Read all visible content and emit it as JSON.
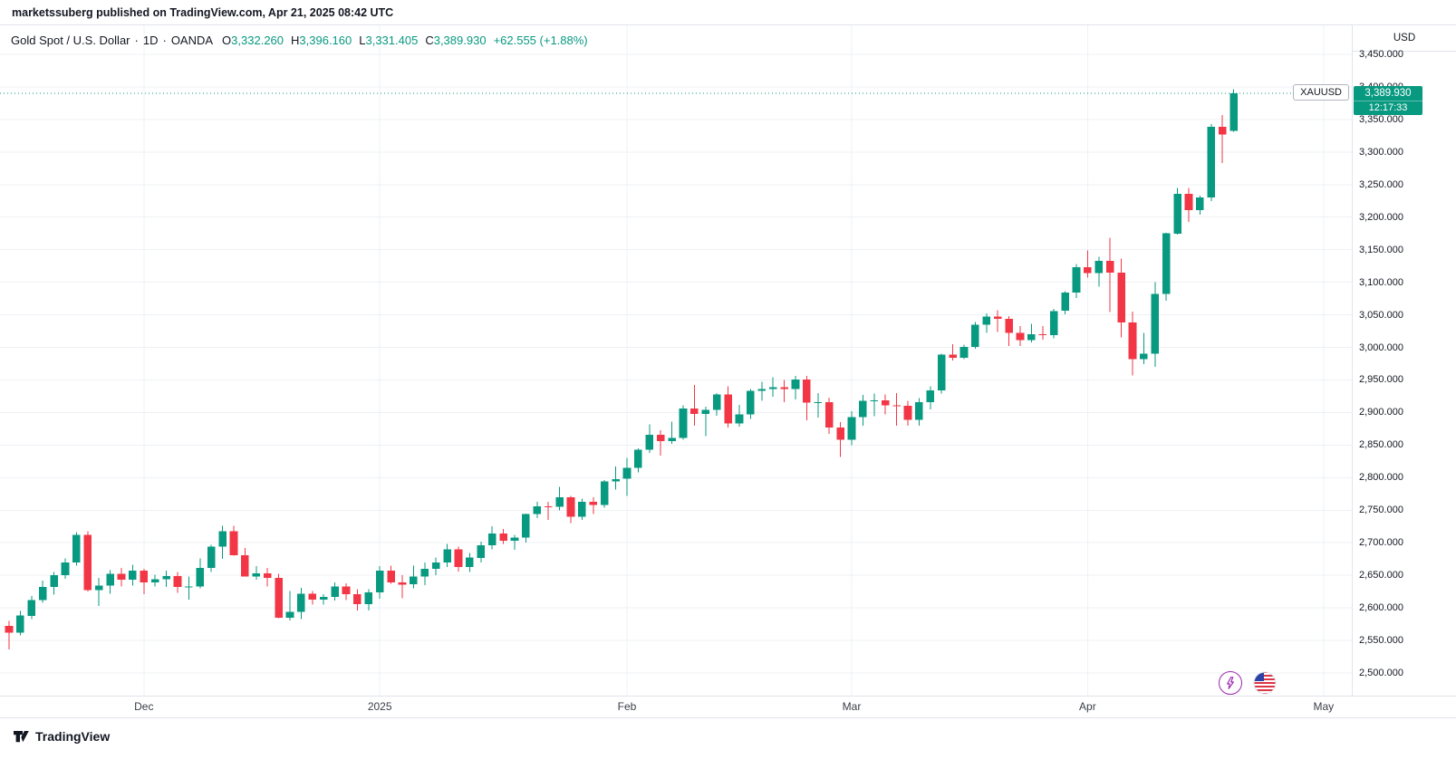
{
  "attribution": {
    "text": "marketssuberg published on TradingView.com, Apr 21, 2025 08:42 UTC"
  },
  "legend": {
    "symbol_title": "Gold Spot / U.S. Dollar",
    "separator": "·",
    "interval": "1D",
    "exchange": "OANDA",
    "ohlc": {
      "o_label": "O",
      "o": "3,332.260",
      "h_label": "H",
      "h": "3,396.160",
      "l_label": "L",
      "l": "3,331.405",
      "c_label": "C",
      "c": "3,389.930",
      "change": "+62.555 (+1.88%)"
    }
  },
  "price_axis": {
    "currency": "USD",
    "labels": [
      "3,450.000",
      "3,400.000",
      "3,350.000",
      "3,300.000",
      "3,250.000",
      "3,200.000",
      "3,150.000",
      "3,100.000",
      "3,050.000",
      "3,000.000",
      "2,950.000",
      "2,900.000",
      "2,850.000",
      "2,800.000",
      "2,750.000",
      "2,700.000",
      "2,650.000",
      "2,600.000",
      "2,550.000",
      "2,500.000"
    ],
    "values": [
      3450,
      3400,
      3350,
      3300,
      3250,
      3200,
      3150,
      3100,
      3050,
      3000,
      2950,
      2900,
      2850,
      2800,
      2750,
      2700,
      2650,
      2600,
      2550,
      2500
    ],
    "last_price_label": "3,389.930",
    "countdown": "12:17:33",
    "symbol_badge": "XAUUSD"
  },
  "time_axis": {
    "ticks": [
      {
        "label": "Dec",
        "index": 12
      },
      {
        "label": "2025",
        "index": 33
      },
      {
        "label": "Feb",
        "index": 55
      },
      {
        "label": "Mar",
        "index": 75
      },
      {
        "label": "Apr",
        "index": 96
      },
      {
        "label": "May",
        "index": 117
      }
    ]
  },
  "footer": {
    "brand": "TradingView"
  },
  "icons": {
    "flash": "lightning-event-marker",
    "flag": "us-economic-event-marker"
  },
  "colors": {
    "up": "#089981",
    "down": "#F23645",
    "grid": "#EEF1F5",
    "border": "#E0E3EB",
    "text": "#131722",
    "purple": "#9C27B0",
    "flag_red": "#DC3545",
    "flag_blue": "#2E42A5"
  },
  "chart_data": {
    "type": "candlestick",
    "title": "Gold Spot / U.S. Dollar",
    "symbol": "XAUUSD",
    "interval": "1D",
    "exchange": "OANDA",
    "ylabel": "USD",
    "price_range": [
      2500,
      3450
    ],
    "grid": true,
    "last_price": 3389.93,
    "columns": [
      "date",
      "open",
      "high",
      "low",
      "close"
    ],
    "candles": [
      [
        "2024-11-14",
        2572,
        2580,
        2536,
        2562
      ],
      [
        "2024-11-15",
        2562,
        2595,
        2558,
        2588
      ],
      [
        "2024-11-18",
        2588,
        2618,
        2583,
        2612
      ],
      [
        "2024-11-19",
        2612,
        2642,
        2608,
        2632
      ],
      [
        "2024-11-20",
        2632,
        2655,
        2620,
        2650
      ],
      [
        "2024-11-21",
        2650,
        2676,
        2645,
        2670
      ],
      [
        "2024-11-22",
        2670,
        2716,
        2665,
        2712
      ],
      [
        "2024-11-25",
        2712,
        2718,
        2625,
        2627
      ],
      [
        "2024-11-26",
        2627,
        2646,
        2603,
        2634
      ],
      [
        "2024-11-27",
        2634,
        2658,
        2622,
        2652
      ],
      [
        "2024-11-28",
        2652,
        2661,
        2633,
        2643
      ],
      [
        "2024-11-29",
        2643,
        2666,
        2634,
        2657
      ],
      [
        "2024-12-02",
        2657,
        2660,
        2621,
        2639
      ],
      [
        "2024-12-03",
        2639,
        2651,
        2633,
        2644
      ],
      [
        "2024-12-04",
        2644,
        2657,
        2632,
        2649
      ],
      [
        "2024-12-05",
        2649,
        2655,
        2623,
        2632
      ],
      [
        "2024-12-06",
        2632,
        2648,
        2613,
        2633
      ],
      [
        "2024-12-09",
        2633,
        2676,
        2630,
        2661
      ],
      [
        "2024-12-10",
        2661,
        2697,
        2655,
        2694
      ],
      [
        "2024-12-11",
        2694,
        2726,
        2675,
        2718
      ],
      [
        "2024-12-12",
        2718,
        2726,
        2680,
        2681
      ],
      [
        "2024-12-13",
        2681,
        2692,
        2648,
        2648
      ],
      [
        "2024-12-16",
        2648,
        2664,
        2643,
        2653
      ],
      [
        "2024-12-17",
        2653,
        2661,
        2633,
        2646
      ],
      [
        "2024-12-18",
        2646,
        2652,
        2584,
        2585
      ],
      [
        "2024-12-19",
        2585,
        2626,
        2581,
        2594
      ],
      [
        "2024-12-20",
        2594,
        2631,
        2583,
        2622
      ],
      [
        "2024-12-23",
        2622,
        2626,
        2605,
        2613
      ],
      [
        "2024-12-24",
        2613,
        2621,
        2605,
        2617
      ],
      [
        "2024-12-26",
        2617,
        2639,
        2611,
        2633
      ],
      [
        "2024-12-27",
        2633,
        2638,
        2612,
        2621
      ],
      [
        "2024-12-30",
        2621,
        2629,
        2596,
        2606
      ],
      [
        "2024-12-31",
        2606,
        2629,
        2596,
        2624
      ],
      [
        "2025-01-02",
        2624,
        2664,
        2614,
        2657
      ],
      [
        "2025-01-03",
        2657,
        2665,
        2637,
        2639
      ],
      [
        "2025-01-06",
        2639,
        2650,
        2615,
        2636
      ],
      [
        "2025-01-07",
        2636,
        2665,
        2630,
        2648
      ],
      [
        "2025-01-08",
        2648,
        2670,
        2635,
        2660
      ],
      [
        "2025-01-09",
        2660,
        2677,
        2650,
        2670
      ],
      [
        "2025-01-10",
        2670,
        2698,
        2663,
        2690
      ],
      [
        "2025-01-13",
        2690,
        2694,
        2656,
        2663
      ],
      [
        "2025-01-14",
        2663,
        2684,
        2655,
        2677
      ],
      [
        "2025-01-15",
        2677,
        2702,
        2670,
        2696
      ],
      [
        "2025-01-16",
        2696,
        2725,
        2690,
        2714
      ],
      [
        "2025-01-17",
        2714,
        2721,
        2698,
        2703
      ],
      [
        "2025-01-20",
        2703,
        2712,
        2689,
        2708
      ],
      [
        "2025-01-21",
        2708,
        2745,
        2700,
        2744
      ],
      [
        "2025-01-22",
        2744,
        2763,
        2738,
        2756
      ],
      [
        "2025-01-23",
        2756,
        2763,
        2735,
        2755
      ],
      [
        "2025-01-24",
        2755,
        2786,
        2750,
        2770
      ],
      [
        "2025-01-27",
        2770,
        2772,
        2730,
        2740
      ],
      [
        "2025-01-28",
        2740,
        2768,
        2735,
        2763
      ],
      [
        "2025-01-29",
        2763,
        2770,
        2744,
        2758
      ],
      [
        "2025-01-30",
        2758,
        2796,
        2754,
        2794
      ],
      [
        "2025-01-31",
        2794,
        2817,
        2782,
        2798
      ],
      [
        "2025-02-03",
        2798,
        2830,
        2772,
        2815
      ],
      [
        "2025-02-04",
        2815,
        2845,
        2808,
        2843
      ],
      [
        "2025-02-05",
        2843,
        2882,
        2838,
        2866
      ],
      [
        "2025-02-06",
        2866,
        2873,
        2834,
        2856
      ],
      [
        "2025-02-07",
        2856,
        2886,
        2852,
        2861
      ],
      [
        "2025-02-10",
        2861,
        2911,
        2858,
        2906
      ],
      [
        "2025-02-11",
        2906,
        2942,
        2880,
        2898
      ],
      [
        "2025-02-12",
        2898,
        2909,
        2864,
        2904
      ],
      [
        "2025-02-13",
        2904,
        2930,
        2895,
        2928
      ],
      [
        "2025-02-14",
        2928,
        2940,
        2877,
        2883
      ],
      [
        "2025-02-17",
        2883,
        2912,
        2878,
        2897
      ],
      [
        "2025-02-18",
        2897,
        2936,
        2890,
        2933
      ],
      [
        "2025-02-19",
        2933,
        2947,
        2918,
        2936
      ],
      [
        "2025-02-20",
        2936,
        2954,
        2924,
        2939
      ],
      [
        "2025-02-21",
        2939,
        2950,
        2916,
        2936
      ],
      [
        "2025-02-24",
        2936,
        2956,
        2920,
        2951
      ],
      [
        "2025-02-25",
        2951,
        2956,
        2888,
        2915
      ],
      [
        "2025-02-26",
        2915,
        2930,
        2892,
        2916
      ],
      [
        "2025-02-27",
        2916,
        2923,
        2867,
        2877
      ],
      [
        "2025-02-28",
        2877,
        2885,
        2832,
        2858
      ],
      [
        "2025-03-03",
        2858,
        2902,
        2850,
        2893
      ],
      [
        "2025-03-04",
        2893,
        2927,
        2880,
        2918
      ],
      [
        "2025-03-05",
        2918,
        2929,
        2894,
        2919
      ],
      [
        "2025-03-06",
        2919,
        2928,
        2897,
        2911
      ],
      [
        "2025-03-07",
        2911,
        2930,
        2880,
        2910
      ],
      [
        "2025-03-10",
        2910,
        2918,
        2880,
        2889
      ],
      [
        "2025-03-11",
        2889,
        2922,
        2880,
        2916
      ],
      [
        "2025-03-12",
        2916,
        2940,
        2905,
        2934
      ],
      [
        "2025-03-13",
        2934,
        2990,
        2929,
        2989
      ],
      [
        "2025-03-14",
        2989,
        3005,
        2980,
        2984
      ],
      [
        "2025-03-17",
        2984,
        3004,
        2982,
        3001
      ],
      [
        "2025-03-18",
        3001,
        3039,
        2998,
        3035
      ],
      [
        "2025-03-19",
        3035,
        3052,
        3022,
        3047
      ],
      [
        "2025-03-20",
        3047,
        3057,
        3024,
        3044
      ],
      [
        "2025-03-21",
        3044,
        3048,
        3002,
        3022
      ],
      [
        "2025-03-24",
        3022,
        3033,
        3002,
        3011
      ],
      [
        "2025-03-25",
        3011,
        3036,
        3008,
        3020
      ],
      [
        "2025-03-26",
        3020,
        3033,
        3012,
        3019
      ],
      [
        "2025-03-27",
        3019,
        3059,
        3014,
        3056
      ],
      [
        "2025-03-28",
        3056,
        3086,
        3051,
        3084
      ],
      [
        "2025-03-31",
        3084,
        3128,
        3076,
        3123
      ],
      [
        "2025-04-01",
        3123,
        3149,
        3107,
        3114
      ],
      [
        "2025-04-02",
        3114,
        3139,
        3093,
        3133
      ],
      [
        "2025-04-03",
        3133,
        3168,
        3054,
        3115
      ],
      [
        "2025-04-04",
        3115,
        3136,
        3015,
        3038
      ],
      [
        "2025-04-07",
        3038,
        3055,
        2957,
        2982
      ],
      [
        "2025-04-08",
        2982,
        3022,
        2974,
        2990
      ],
      [
        "2025-04-09",
        2990,
        3100,
        2970,
        3082
      ],
      [
        "2025-04-10",
        3082,
        3176,
        3072,
        3175
      ],
      [
        "2025-04-11",
        3175,
        3245,
        3173,
        3236
      ],
      [
        "2025-04-14",
        3236,
        3245,
        3193,
        3211
      ],
      [
        "2025-04-15",
        3211,
        3233,
        3204,
        3230
      ],
      [
        "2025-04-16",
        3230,
        3343,
        3225,
        3339
      ],
      [
        "2025-04-17",
        3339,
        3357,
        3283,
        3327
      ],
      [
        "2025-04-21",
        3332.26,
        3396.16,
        3331.405,
        3389.93
      ]
    ]
  }
}
